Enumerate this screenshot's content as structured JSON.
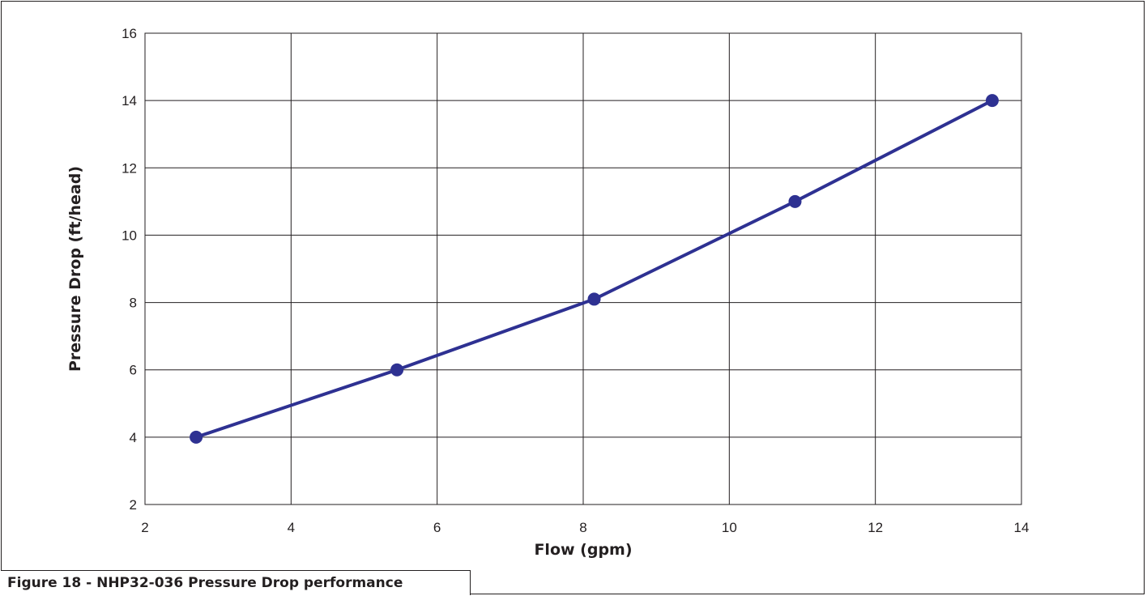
{
  "caption": "Figure 18 - NHP32-036 Pressure Drop performance",
  "colors": {
    "series": "#2e3192",
    "grid": "#231f20"
  },
  "chart_data": {
    "type": "line",
    "title": "",
    "xlabel": "Flow (gpm)",
    "ylabel": "Pressure Drop (ft/head)",
    "xlim": [
      2,
      14
    ],
    "ylim": [
      2,
      16
    ],
    "xticks": [
      2,
      4,
      6,
      8,
      10,
      12,
      14
    ],
    "yticks": [
      2,
      4,
      6,
      8,
      10,
      12,
      14,
      16
    ],
    "grid": true,
    "legend": "none",
    "series": [
      {
        "x": [
          2.7,
          5.45,
          8.15,
          10.9,
          13.6
        ],
        "y": [
          4,
          6,
          8.1,
          11,
          14
        ]
      }
    ]
  }
}
